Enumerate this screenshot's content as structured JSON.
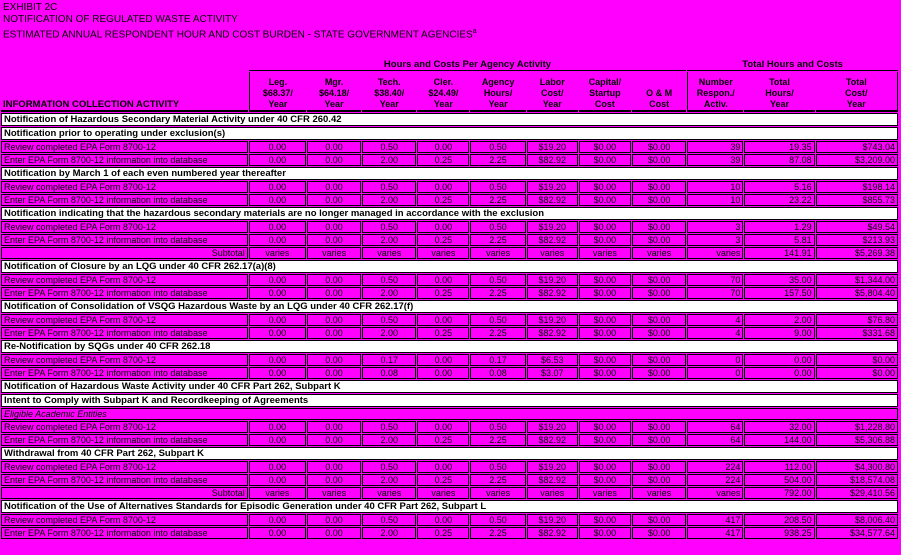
{
  "colors": {
    "background": "#FF00FF",
    "section_row_background": "#FFFFFF",
    "text": "#000000"
  },
  "page": {
    "title_lines": [
      "EXHIBIT 2C",
      "NOTIFICATION OF REGULATED WASTE ACTIVITY",
      "ESTIMATED ANNUAL RESPONDENT HOUR AND COST BURDEN - STATE GOVERNMENT AGENCIES"
    ],
    "title_superscript": "a"
  },
  "table": {
    "group_headers": {
      "left": "Hours and Costs Per Agency Activity",
      "right": "Total Hours and Costs"
    },
    "activity_header": "INFORMATION COLLECTION ACTIVITY",
    "columns": [
      {
        "key": "leg",
        "lines": [
          "Leg.",
          "$68.37/",
          "Year"
        ]
      },
      {
        "key": "mgr",
        "lines": [
          "Mgr.",
          "$64.18/",
          "Year"
        ]
      },
      {
        "key": "tech",
        "lines": [
          "Tech.",
          "$38.40/",
          "Year"
        ]
      },
      {
        "key": "cler",
        "lines": [
          "Cler.",
          "$24.49/",
          "Year"
        ]
      },
      {
        "key": "agency-hours",
        "lines": [
          "Agency",
          "Hours/",
          "Year"
        ]
      },
      {
        "key": "labor-cost",
        "lines": [
          "Labor",
          "Cost/",
          "Year"
        ]
      },
      {
        "key": "capital-startup",
        "lines": [
          "Capital/",
          "Startup",
          "Cost"
        ]
      },
      {
        "key": "om-cost",
        "lines": [
          "O & M",
          "Cost"
        ]
      },
      {
        "key": "number-respon",
        "lines": [
          "Number",
          "Respon./",
          "Activ."
        ]
      },
      {
        "key": "total-hours",
        "lines": [
          "Total",
          "Hours/",
          "Year"
        ]
      },
      {
        "key": "total-cost",
        "lines": [
          "Total",
          "Cost/",
          "Year"
        ]
      }
    ],
    "rows": [
      {
        "type": "section",
        "label": "Notification of Hazardous Secondary Material Activity under 40 CFR 260.42"
      },
      {
        "type": "subsection",
        "label": "Notification prior to operating under exclusion(s)"
      },
      {
        "type": "data",
        "label": "Review completed EPA Form 8700-12",
        "values": [
          "0.00",
          "0.00",
          "0.50",
          "0.00",
          "0.50",
          "$19.20",
          "$0.00",
          "$0.00",
          "39",
          "19.35",
          "$743.04"
        ]
      },
      {
        "type": "data",
        "label": "Enter EPA Form 8700-12 information into database",
        "values": [
          "0.00",
          "0.00",
          "2.00",
          "0.25",
          "2.25",
          "$82.92",
          "$0.00",
          "$0.00",
          "39",
          "87.08",
          "$3,209.00"
        ]
      },
      {
        "type": "subsection",
        "label": "Notification by March 1 of each even numbered year thereafter"
      },
      {
        "type": "data",
        "label": "Review completed EPA Form 8700-12",
        "values": [
          "0.00",
          "0.00",
          "0.50",
          "0.00",
          "0.50",
          "$19.20",
          "$0.00",
          "$0.00",
          "10",
          "5.16",
          "$198.14"
        ]
      },
      {
        "type": "data",
        "label": "Enter EPA Form 8700-12 information into database",
        "values": [
          "0.00",
          "0.00",
          "2.00",
          "0.25",
          "2.25",
          "$82.92",
          "$0.00",
          "$0.00",
          "10",
          "23.22",
          "$855.73"
        ]
      },
      {
        "type": "subsection",
        "label": "Notification indicating that the hazardous secondary materials are no longer managed in accordance with the exclusion"
      },
      {
        "type": "data",
        "label": "Review completed EPA Form 8700-12",
        "values": [
          "0.00",
          "0.00",
          "0.50",
          "0.00",
          "0.50",
          "$19.20",
          "$0.00",
          "$0.00",
          "3",
          "1.29",
          "$49.54"
        ]
      },
      {
        "type": "data",
        "label": "Enter EPA Form 8700-12 information into database",
        "values": [
          "0.00",
          "0.00",
          "2.00",
          "0.25",
          "2.25",
          "$82.92",
          "$0.00",
          "$0.00",
          "3",
          "5.81",
          "$213.93"
        ]
      },
      {
        "type": "subtotal",
        "label": "Subtotal",
        "values": [
          "varies",
          "varies",
          "varies",
          "varies",
          "varies",
          "varies",
          "varies",
          "varies",
          "varies",
          "141.91",
          "$5,269.38"
        ]
      },
      {
        "type": "section",
        "label": "Notification of Closure by an LQG under 40 CFR 262.17(a)(8)"
      },
      {
        "type": "data",
        "label": "Review completed EPA Form 8700-12",
        "values": [
          "0.00",
          "0.00",
          "0.50",
          "0.00",
          "0.50",
          "$19.20",
          "$0.00",
          "$0.00",
          "70",
          "35.00",
          "$1,344.00"
        ]
      },
      {
        "type": "data",
        "label": "Enter EPA Form 8700-12 information into database",
        "values": [
          "0.00",
          "0.00",
          "2.00",
          "0.25",
          "2.25",
          "$82.92",
          "$0.00",
          "$0.00",
          "70",
          "157.50",
          "$5,804.40"
        ]
      },
      {
        "type": "section",
        "label": "Notification of Consolidation of VSQG Hazardous Waste by an LQG under 40 CFR 262.17(f)"
      },
      {
        "type": "data",
        "label": "Review completed EPA Form 8700-12",
        "values": [
          "0.00",
          "0.00",
          "0.50",
          "0.00",
          "0.50",
          "$19.20",
          "$0.00",
          "$0.00",
          "4",
          "2.00",
          "$76.80"
        ]
      },
      {
        "type": "data",
        "label": "Enter EPA Form 8700-12 information into database",
        "values": [
          "0.00",
          "0.00",
          "2.00",
          "0.25",
          "2.25",
          "$82.92",
          "$0.00",
          "$0.00",
          "4",
          "9.00",
          "$331.68"
        ]
      },
      {
        "type": "section",
        "label": "Re-Notification by SQGs under 40 CFR 262.18"
      },
      {
        "type": "data",
        "label": "Review completed EPA Form 8700-12",
        "values": [
          "0.00",
          "0.00",
          "0.17",
          "0.00",
          "0.17",
          "$6.53",
          "$0.00",
          "$0.00",
          "0",
          "0.00",
          "$0.00"
        ]
      },
      {
        "type": "data",
        "label": "Enter EPA Form 8700-12 information into database",
        "values": [
          "0.00",
          "0.00",
          "0.08",
          "0.00",
          "0.08",
          "$3.07",
          "$0.00",
          "$0.00",
          "0",
          "0.00",
          "$0.00"
        ]
      },
      {
        "type": "section",
        "label": "Notification of Hazardous Waste Activity under 40 CFR Part 262, Subpart K"
      },
      {
        "type": "subsection",
        "label": "Intent to Comply with Subpart K and Recordkeeping of Agreements"
      },
      {
        "type": "note",
        "label": "Eligible Academic Entities"
      },
      {
        "type": "data",
        "label": "Review completed EPA Form 8700-12",
        "values": [
          "0.00",
          "0.00",
          "0.50",
          "0.00",
          "0.50",
          "$19.20",
          "$0.00",
          "$0.00",
          "64",
          "32.00",
          "$1,228.80"
        ]
      },
      {
        "type": "data",
        "label": "Enter EPA Form 8700-12 information into database",
        "values": [
          "0.00",
          "0.00",
          "2.00",
          "0.25",
          "2.25",
          "$82.92",
          "$0.00",
          "$0.00",
          "64",
          "144.00",
          "$5,306.88"
        ]
      },
      {
        "type": "subsection",
        "label": "Withdrawal from 40 CFR Part 262, Subpart K"
      },
      {
        "type": "data",
        "label": "Review completed EPA Form 8700-12",
        "values": [
          "0.00",
          "0.00",
          "0.50",
          "0.00",
          "0.50",
          "$19.20",
          "$0.00",
          "$0.00",
          "224",
          "112.00",
          "$4,300.80"
        ]
      },
      {
        "type": "data",
        "label": "Enter EPA Form 8700-12 information into database",
        "values": [
          "0.00",
          "0.00",
          "2.00",
          "0.25",
          "2.25",
          "$82.92",
          "$0.00",
          "$0.00",
          "224",
          "504.00",
          "$18,574.08"
        ]
      },
      {
        "type": "subtotal",
        "label": "Subtotal",
        "values": [
          "varies",
          "varies",
          "varies",
          "varies",
          "varies",
          "varies",
          "varies",
          "varies",
          "varies",
          "792.00",
          "$29,410.56"
        ]
      },
      {
        "type": "section",
        "label": "Notification of the Use of Alternatives Standards for Episodic Generation under 40 CFR Part 262, Subpart L"
      },
      {
        "type": "data",
        "label": "Review completed EPA Form 8700-12",
        "values": [
          "0.00",
          "0.00",
          "0.50",
          "0.00",
          "0.50",
          "$19.20",
          "$0.00",
          "$0.00",
          "417",
          "208.50",
          "$8,006.40"
        ]
      },
      {
        "type": "data",
        "label": "Enter EPA Form 8700-12 information into database",
        "values": [
          "0.00",
          "0.00",
          "2.00",
          "0.25",
          "2.25",
          "$82.92",
          "$0.00",
          "$0.00",
          "417",
          "938.25",
          "$34,577.64"
        ]
      }
    ]
  }
}
